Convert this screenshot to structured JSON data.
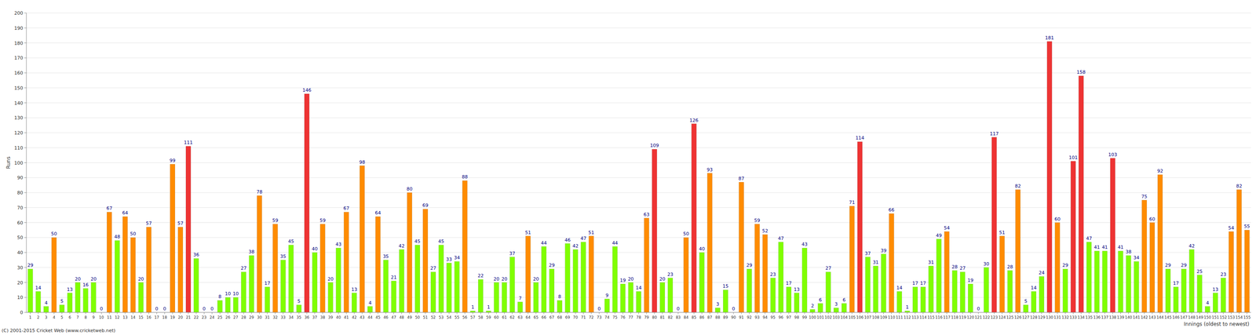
{
  "chart_data": {
    "type": "bar",
    "x_label": "Innings (oldest to newest)",
    "y_label": "Runs",
    "annotations": [
      "(C) 2001-2015 Cricket Web (www.cricketweb.net)"
    ],
    "categories": [
      "1",
      "2",
      "3",
      "4",
      "5",
      "6",
      "7",
      "8",
      "9",
      "10",
      "11",
      "12",
      "13",
      "14",
      "15",
      "16",
      "17",
      "18",
      "19",
      "20",
      "21",
      "22",
      "23",
      "24",
      "25",
      "26",
      "27",
      "28",
      "29",
      "30",
      "31",
      "32",
      "33",
      "34",
      "35",
      "36",
      "37",
      "38",
      "39",
      "40",
      "41",
      "42",
      "43",
      "44",
      "45",
      "46",
      "47",
      "48",
      "49",
      "50",
      "51",
      "52",
      "53",
      "54",
      "55",
      "56",
      "57",
      "58",
      "59",
      "60",
      "61",
      "62",
      "63",
      "64",
      "65",
      "66",
      "67",
      "68",
      "69",
      "70",
      "71",
      "72",
      "73",
      "74",
      "75",
      "76",
      "77",
      "78",
      "79",
      "80",
      "81",
      "82",
      "83",
      "84",
      "85",
      "86",
      "87",
      "88",
      "89",
      "90",
      "91",
      "92",
      "93",
      "94",
      "95",
      "96",
      "97",
      "98",
      "99",
      "100",
      "101",
      "102",
      "103",
      "104",
      "105",
      "106",
      "107",
      "108",
      "109",
      "110",
      "111",
      "112",
      "113",
      "114",
      "115",
      "116",
      "117",
      "118",
      "119",
      "120",
      "121",
      "122",
      "123",
      "124",
      "125",
      "126",
      "127",
      "128",
      "129",
      "130",
      "131",
      "132",
      "133",
      "134",
      "135",
      "136",
      "137",
      "138",
      "139",
      "140",
      "141",
      "142",
      "143",
      "144",
      "145",
      "146",
      "147",
      "148",
      "149",
      "150",
      "151",
      "152",
      "153",
      "154",
      "155"
    ],
    "values": [
      29,
      14,
      4,
      50,
      5,
      13,
      20,
      16,
      20,
      0,
      67,
      48,
      64,
      50,
      20,
      57,
      0,
      0,
      99,
      57,
      111,
      36,
      0,
      0,
      8,
      10,
      10,
      27,
      38,
      78,
      17,
      59,
      35,
      45,
      5,
      146,
      40,
      59,
      20,
      43,
      67,
      13,
      98,
      4,
      64,
      35,
      21,
      42,
      80,
      45,
      69,
      27,
      45,
      33,
      34,
      88,
      1,
      22,
      1,
      20,
      20,
      37,
      7,
      51,
      20,
      44,
      29,
      8,
      46,
      42,
      47,
      51,
      0,
      9,
      44,
      19,
      20,
      14,
      63,
      109,
      20,
      23,
      0,
      50,
      126,
      40,
      93,
      3,
      15,
      0,
      87,
      29,
      59,
      52,
      23,
      47,
      17,
      13,
      43,
      2,
      6,
      27,
      3,
      6,
      71,
      114,
      37,
      31,
      39,
      66,
      14,
      1,
      17,
      17,
      31,
      49,
      54,
      28,
      27,
      19,
      0,
      30,
      117,
      51,
      28,
      82,
      5,
      14,
      24,
      181,
      60,
      29,
      101,
      158,
      47,
      41,
      41,
      103,
      41,
      38,
      34,
      75,
      60,
      92,
      29,
      17,
      29,
      42,
      25,
      4,
      13,
      23,
      54,
      82,
      55
    ],
    "colors": [
      "#80ff00",
      "#80ff00",
      "#80ff00",
      "#ff8c00",
      "#80ff00",
      "#80ff00",
      "#80ff00",
      "#80ff00",
      "#80ff00",
      "#80ff00",
      "#ff8c00",
      "#80ff00",
      "#ff8c00",
      "#ff8c00",
      "#80ff00",
      "#ff8c00",
      "#80ff00",
      "#80ff00",
      "#ff8c00",
      "#ff8c00",
      "#ee3333",
      "#80ff00",
      "#80ff00",
      "#80ff00",
      "#80ff00",
      "#80ff00",
      "#80ff00",
      "#80ff00",
      "#80ff00",
      "#ff8c00",
      "#80ff00",
      "#ff8c00",
      "#80ff00",
      "#80ff00",
      "#80ff00",
      "#ee3333",
      "#80ff00",
      "#ff8c00",
      "#80ff00",
      "#80ff00",
      "#ff8c00",
      "#80ff00",
      "#ff8c00",
      "#80ff00",
      "#ff8c00",
      "#80ff00",
      "#80ff00",
      "#80ff00",
      "#ff8c00",
      "#80ff00",
      "#ff8c00",
      "#80ff00",
      "#80ff00",
      "#80ff00",
      "#80ff00",
      "#ff8c00",
      "#80ff00",
      "#80ff00",
      "#80ff00",
      "#80ff00",
      "#80ff00",
      "#80ff00",
      "#80ff00",
      "#ff8c00",
      "#80ff00",
      "#80ff00",
      "#80ff00",
      "#80ff00",
      "#80ff00",
      "#80ff00",
      "#80ff00",
      "#ff8c00",
      "#80ff00",
      "#80ff00",
      "#80ff00",
      "#80ff00",
      "#80ff00",
      "#80ff00",
      "#ff8c00",
      "#ee3333",
      "#80ff00",
      "#80ff00",
      "#80ff00",
      "#ff8c00",
      "#ee3333",
      "#80ff00",
      "#ff8c00",
      "#80ff00",
      "#80ff00",
      "#80ff00",
      "#ff8c00",
      "#80ff00",
      "#ff8c00",
      "#ff8c00",
      "#80ff00",
      "#80ff00",
      "#80ff00",
      "#80ff00",
      "#80ff00",
      "#80ff00",
      "#80ff00",
      "#80ff00",
      "#80ff00",
      "#80ff00",
      "#ff8c00",
      "#ee3333",
      "#80ff00",
      "#80ff00",
      "#80ff00",
      "#ff8c00",
      "#80ff00",
      "#80ff00",
      "#80ff00",
      "#80ff00",
      "#80ff00",
      "#80ff00",
      "#ff8c00",
      "#80ff00",
      "#80ff00",
      "#80ff00",
      "#80ff00",
      "#80ff00",
      "#ee3333",
      "#ff8c00",
      "#80ff00",
      "#ff8c00",
      "#80ff00",
      "#80ff00",
      "#80ff00",
      "#ee3333",
      "#ff8c00",
      "#80ff00",
      "#ee3333",
      "#ee3333",
      "#80ff00",
      "#80ff00",
      "#80ff00",
      "#ee3333",
      "#80ff00",
      "#80ff00",
      "#80ff00",
      "#ff8c00",
      "#ff8c00",
      "#ff8c00",
      "#80ff00",
      "#80ff00",
      "#80ff00",
      "#80ff00",
      "#80ff00",
      "#80ff00",
      "#80ff00",
      "#80ff00",
      "#ff8c00",
      "#ff8c00",
      "#ff8c00"
    ],
    "ylim": [
      0,
      200
    ],
    "yticks": [
      0,
      10,
      20,
      30,
      40,
      50,
      60,
      70,
      80,
      90,
      100,
      110,
      120,
      130,
      140,
      150,
      160,
      170,
      180,
      190,
      200
    ],
    "grid": true,
    "data_labels": true
  }
}
